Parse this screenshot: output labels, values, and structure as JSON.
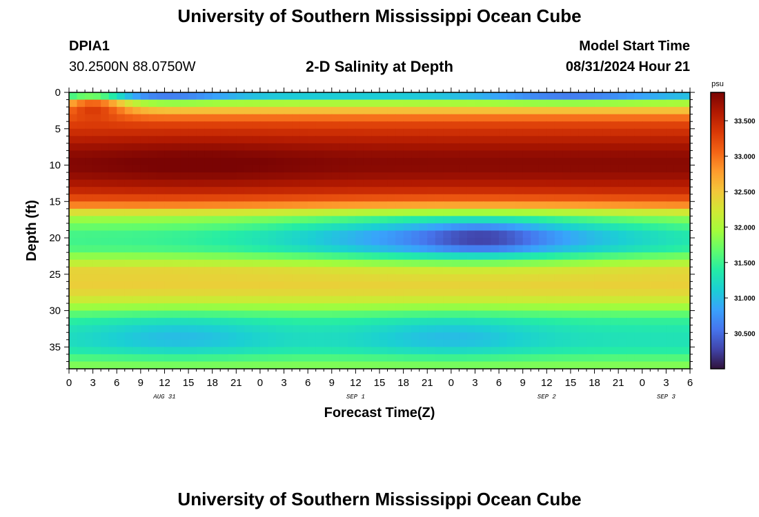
{
  "header": {
    "title": "University of Southern Mississippi Ocean Cube",
    "station": "DPIA1",
    "coords": "30.2500N  88.0750W",
    "plot_title": "2-D Salinity at Depth",
    "model_label": "Model Start Time",
    "model_time": "08/31/2024 Hour 21"
  },
  "footer": {
    "title": "University of Southern Mississippi Ocean Cube"
  },
  "chart_data": {
    "type": "heatmap",
    "title": "2-D Salinity at Depth",
    "xlabel": "Forecast Time(Z)",
    "ylabel": "Depth (ft)",
    "x_ticks": [
      "0",
      "3",
      "6",
      "9",
      "12",
      "15",
      "18",
      "21",
      "0",
      "3",
      "6",
      "9",
      "12",
      "15",
      "18",
      "21",
      "0",
      "3",
      "6",
      "9",
      "12",
      "15",
      "18",
      "21",
      "0",
      "3",
      "6"
    ],
    "x_tick_hours": [
      0,
      3,
      6,
      9,
      12,
      15,
      18,
      21,
      24,
      27,
      30,
      33,
      36,
      39,
      42,
      45,
      48,
      51,
      54,
      57,
      60,
      63,
      66,
      69,
      72,
      75,
      78
    ],
    "xlim": [
      0,
      78
    ],
    "date_labels": [
      {
        "text": "AUG 31",
        "hour": 12
      },
      {
        "text": "SEP 1",
        "hour": 36
      },
      {
        "text": "SEP 2",
        "hour": 60
      },
      {
        "text": "SEP 3",
        "hour": 75
      }
    ],
    "y_ticks": [
      "0",
      "5",
      "10",
      "15",
      "20",
      "25",
      "30",
      "35"
    ],
    "y_tick_values": [
      0,
      5,
      10,
      15,
      20,
      25,
      30,
      35
    ],
    "ylim": [
      0,
      38
    ],
    "colorbar": {
      "unit": "psu",
      "range": [
        30.0,
        33.9
      ],
      "ticks": [
        "33.500",
        "33.000",
        "32.500",
        "32.000",
        "31.500",
        "31.000",
        "30.500"
      ],
      "tick_values": [
        33.5,
        33.0,
        32.5,
        32.0,
        31.5,
        31.0,
        30.5
      ],
      "colors": [
        "#30123b",
        "#4145ab",
        "#4675ed",
        "#39a2fc",
        "#1bcfd4",
        "#24eca6",
        "#61fc6c",
        "#a4fc3b",
        "#d1e834",
        "#f3c63a",
        "#fe9b2d",
        "#f36315",
        "#d93806",
        "#b11901",
        "#7a0403"
      ]
    },
    "depth_profile": [
      {
        "depth": 0,
        "salinity": 30.5
      },
      {
        "depth": 1,
        "salinity": 31.7
      },
      {
        "depth": 2,
        "salinity": 32.3
      },
      {
        "depth": 3,
        "salinity": 32.8
      },
      {
        "depth": 4,
        "salinity": 33.2
      },
      {
        "depth": 6,
        "salinity": 33.5
      },
      {
        "depth": 8,
        "salinity": 33.75
      },
      {
        "depth": 10,
        "salinity": 33.85
      },
      {
        "depth": 12,
        "salinity": 33.7
      },
      {
        "depth": 14,
        "salinity": 33.4
      },
      {
        "depth": 15.5,
        "salinity": 32.9
      },
      {
        "depth": 16.5,
        "salinity": 32.3
      },
      {
        "depth": 17.5,
        "salinity": 31.9
      },
      {
        "depth": 19,
        "salinity": 31.6
      },
      {
        "depth": 20,
        "salinity": 31.5
      },
      {
        "depth": 21.5,
        "salinity": 31.6
      },
      {
        "depth": 23,
        "salinity": 32.0
      },
      {
        "depth": 24.5,
        "salinity": 32.4
      },
      {
        "depth": 27,
        "salinity": 32.45
      },
      {
        "depth": 28.5,
        "salinity": 32.2
      },
      {
        "depth": 30,
        "salinity": 31.8
      },
      {
        "depth": 31,
        "salinity": 31.5
      },
      {
        "depth": 33,
        "salinity": 31.3
      },
      {
        "depth": 35,
        "salinity": 31.3
      },
      {
        "depth": 36.5,
        "salinity": 31.6
      },
      {
        "depth": 38,
        "salinity": 31.9
      }
    ],
    "anomalies": [
      {
        "hour": 12,
        "depth": 0.3,
        "sigma_h": 6,
        "sigma_d": 0.7,
        "delta": -0.5
      },
      {
        "hour": 63,
        "depth": 0.3,
        "sigma_h": 8,
        "sigma_d": 0.7,
        "delta": -0.5
      },
      {
        "hour": 3,
        "depth": 1.5,
        "sigma_h": 3,
        "sigma_d": 1.2,
        "delta": 1.1
      },
      {
        "hour": 16,
        "depth": 10,
        "sigma_h": 10,
        "sigma_d": 3,
        "delta": 0.1
      },
      {
        "hour": 50,
        "depth": 20,
        "sigma_h": 16,
        "sigma_d": 2.5,
        "delta": -0.9
      },
      {
        "hour": 52,
        "depth": 20,
        "sigma_h": 5,
        "sigma_d": 1.5,
        "delta": -0.4
      },
      {
        "hour": 14,
        "depth": 33.5,
        "sigma_h": 8,
        "sigma_d": 2,
        "delta": -0.3
      },
      {
        "hour": 48,
        "depth": 33.5,
        "sigma_h": 8,
        "sigma_d": 2,
        "delta": -0.3
      }
    ]
  }
}
